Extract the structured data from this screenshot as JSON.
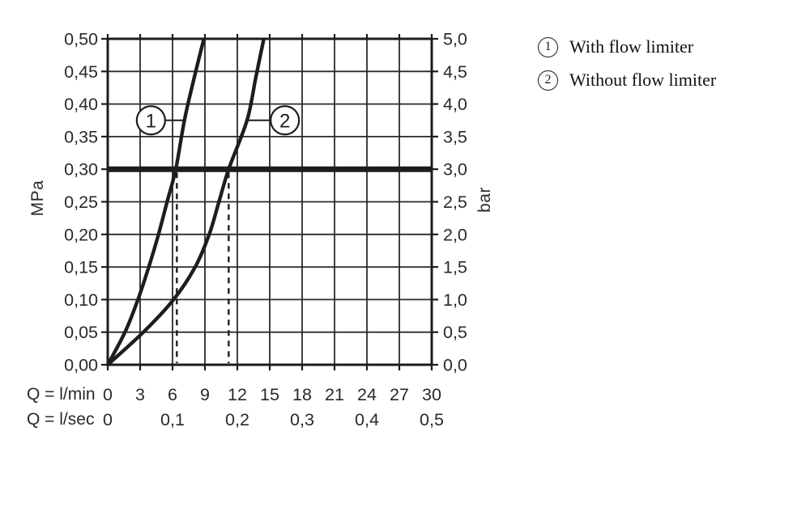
{
  "legend": {
    "items": [
      {
        "num": "1",
        "label": "With flow limiter"
      },
      {
        "num": "2",
        "label": "Without flow limiter"
      }
    ]
  },
  "colors": {
    "ink": "#1d1d1d",
    "grid": "#2a2a2a",
    "background": "#ffffff"
  },
  "chart_data": {
    "type": "line",
    "title": "",
    "grid": "on",
    "x_axis": {
      "unit_min": "Q = l/min",
      "unit_sec": "Q = l/sec",
      "range_lmin": [
        0,
        30
      ],
      "ticks_lmin": [
        {
          "q": 0,
          "label": "0"
        },
        {
          "q": 3,
          "label": "3"
        },
        {
          "q": 6,
          "label": "6"
        },
        {
          "q": 9,
          "label": "9"
        },
        {
          "q": 12,
          "label": "12"
        },
        {
          "q": 15,
          "label": "15"
        },
        {
          "q": 18,
          "label": "18"
        },
        {
          "q": 21,
          "label": "21"
        },
        {
          "q": 24,
          "label": "24"
        },
        {
          "q": 27,
          "label": "27"
        },
        {
          "q": 30,
          "label": "30"
        }
      ],
      "ticks_lsec": [
        {
          "q": 0,
          "label": "0"
        },
        {
          "q": 6,
          "label": "0,1"
        },
        {
          "q": 12,
          "label": "0,2"
        },
        {
          "q": 18,
          "label": "0,3"
        },
        {
          "q": 24,
          "label": "0,4"
        },
        {
          "q": 30,
          "label": "0,5"
        }
      ]
    },
    "y_left": {
      "unit": "MPa",
      "range": [
        0,
        0.5
      ],
      "ticks": [
        {
          "p": 0.0,
          "label": "0,00"
        },
        {
          "p": 0.05,
          "label": "0,05"
        },
        {
          "p": 0.1,
          "label": "0,10"
        },
        {
          "p": 0.15,
          "label": "0,15"
        },
        {
          "p": 0.2,
          "label": "0,20"
        },
        {
          "p": 0.25,
          "label": "0,25"
        },
        {
          "p": 0.3,
          "label": "0,30"
        },
        {
          "p": 0.35,
          "label": "0,35"
        },
        {
          "p": 0.4,
          "label": "0,40"
        },
        {
          "p": 0.45,
          "label": "0,45"
        },
        {
          "p": 0.5,
          "label": "0,50"
        }
      ]
    },
    "y_right": {
      "unit": "bar",
      "range": [
        0,
        5
      ],
      "ticks": [
        {
          "bar": 0.0,
          "label": "0,0"
        },
        {
          "bar": 0.5,
          "label": "0,5"
        },
        {
          "bar": 1.0,
          "label": "1,0"
        },
        {
          "bar": 1.5,
          "label": "1,5"
        },
        {
          "bar": 2.0,
          "label": "2,0"
        },
        {
          "bar": 2.5,
          "label": "2,5"
        },
        {
          "bar": 3.0,
          "label": "3,0"
        },
        {
          "bar": 3.5,
          "label": "3,5"
        },
        {
          "bar": 4.0,
          "label": "4,0"
        },
        {
          "bar": 4.5,
          "label": "4,5"
        },
        {
          "bar": 5.0,
          "label": "5,0"
        }
      ]
    },
    "reference_line": {
      "mpa": 0.3,
      "bar": 3.0
    },
    "drop_lines_q": [
      6.4,
      11.2
    ],
    "series": [
      {
        "name": "With flow limiter",
        "marker": "1",
        "points": [
          [
            0,
            0
          ],
          [
            1.6,
            0.05
          ],
          [
            2.8,
            0.1
          ],
          [
            3.8,
            0.15
          ],
          [
            4.7,
            0.2
          ],
          [
            5.5,
            0.25
          ],
          [
            6.3,
            0.3
          ],
          [
            7.1,
            0.375
          ],
          [
            8.0,
            0.44
          ],
          [
            8.9,
            0.5
          ]
        ]
      },
      {
        "name": "Without flow limiter",
        "marker": "2",
        "points": [
          [
            0,
            0
          ],
          [
            3.3,
            0.05
          ],
          [
            6.1,
            0.1
          ],
          [
            8.1,
            0.15
          ],
          [
            9.4,
            0.2
          ],
          [
            10.3,
            0.25
          ],
          [
            11.2,
            0.3
          ],
          [
            12.9,
            0.375
          ],
          [
            13.7,
            0.44
          ],
          [
            14.45,
            0.5
          ]
        ]
      }
    ],
    "annotations": [
      {
        "num": "1",
        "q": 4.0,
        "p": 0.375,
        "attach_q": 7.05
      },
      {
        "num": "2",
        "q": 16.4,
        "p": 0.375,
        "attach_q": 12.9
      }
    ]
  }
}
